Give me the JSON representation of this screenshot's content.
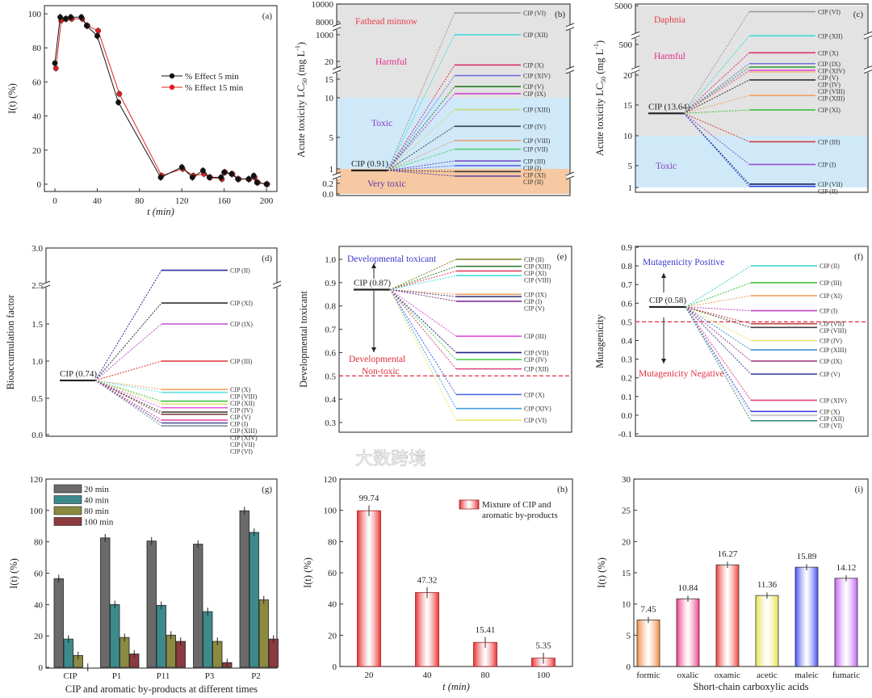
{
  "figure": {
    "watermark": "大数跨境"
  },
  "chart_data": [
    {
      "panel": "(a)",
      "type": "line",
      "xlabel": "t (min)",
      "ylabel": "I(t) (%)",
      "xlim": [
        -8,
        208
      ],
      "ylim": [
        -4,
        104
      ],
      "xticks": [
        0,
        40,
        80,
        120,
        160,
        200
      ],
      "yticks": [
        0,
        20,
        40,
        60,
        80,
        100
      ],
      "x": [
        0,
        5,
        10,
        15,
        25,
        30,
        40,
        60,
        100,
        120,
        130,
        140,
        146,
        157,
        160,
        167,
        173,
        183,
        188,
        191,
        200
      ],
      "series": [
        {
          "name": "% Effect 5 min",
          "color": "#111111",
          "values": [
            71,
            98,
            97,
            98,
            98,
            93,
            87,
            48,
            4,
            10,
            4,
            8,
            4,
            4,
            7,
            6,
            3,
            3,
            5,
            1,
            0
          ],
          "error": 2
        },
        {
          "name": "% Effect 15 min",
          "color": "#e02020",
          "values": [
            68,
            96,
            97,
            97,
            97,
            93,
            90,
            53,
            5,
            9,
            5,
            6,
            4,
            3,
            7,
            6,
            3,
            3,
            4,
            1,
            0
          ],
          "error": 2
        }
      ],
      "legend": "center-right"
    },
    {
      "panel": "(b)",
      "type": "line",
      "subtype": "slope",
      "ylabel_parts": [
        "Acute toxicity LC",
        "50",
        " (mg L",
        "-1",
        ")"
      ],
      "yticks": [
        0,
        0.2,
        1,
        5,
        10,
        15,
        20,
        1000,
        8000,
        10000
      ],
      "ytick_labels": [
        "0.0",
        "0.2",
        "1",
        "5",
        "10",
        "15",
        "20",
        "1000",
        "8000",
        "10000"
      ],
      "axis_breaks": [
        0.6,
        17.5,
        5000
      ],
      "bands": [
        {
          "from": 10,
          "to": 10000,
          "color": "#e3e3e3"
        },
        {
          "from": 1,
          "to": 10,
          "color": "#cfe9f9"
        },
        {
          "from": 0,
          "to": 1,
          "color": "#f6c9a2"
        }
      ],
      "annotations": [
        {
          "text": "Fathead minnow",
          "color": "#e8404a"
        },
        {
          "text": "Harmful",
          "color": "#e0308a"
        },
        {
          "text": "Toxic",
          "color": "#8a3cc0"
        },
        {
          "text": "Very toxic",
          "color": "#5a3ca8"
        }
      ],
      "parent": {
        "label": "CIP (0.91)",
        "value": 0.91
      },
      "products": [
        {
          "name": "CIP (VI)",
          "value": 9000,
          "color": "#9a9a9a"
        },
        {
          "name": "CIP (XII)",
          "value": 1000,
          "color": "#40d8d8"
        },
        {
          "name": "CIP (X)",
          "value": 19,
          "color": "#d83060"
        },
        {
          "name": "CIP (XIV)",
          "value": 16,
          "color": "#7070e0"
        },
        {
          "name": "CIP (V)",
          "value": 13,
          "color": "#208020"
        },
        {
          "name": "CIP (IX)",
          "value": 11.1,
          "color": "#d040d0"
        },
        {
          "name": "CIP (XIII)",
          "value": 8.5,
          "color": "#c8d870"
        },
        {
          "name": "CIP (IV)",
          "value": 6.4,
          "color": "#304050"
        },
        {
          "name": "CIP (VIII)",
          "value": 4.6,
          "color": "#e0a070"
        },
        {
          "name": "CIP (VII)",
          "value": 3.5,
          "color": "#40d060"
        },
        {
          "name": "CIP (III)",
          "value": 2.0,
          "color": "#7040c0"
        },
        {
          "name": "CIP (I)",
          "value": 1.4,
          "color": "#6060e0"
        },
        {
          "name": "CIP (XI)",
          "value": 0.85,
          "color": "#303030"
        },
        {
          "name": "CIP (II)",
          "value": 0.6,
          "color": "#6040a0"
        }
      ]
    },
    {
      "panel": "(c)",
      "type": "line",
      "subtype": "slope",
      "ylabel_parts": [
        "Acute toxicity LC",
        "50",
        " (mg L",
        "-1",
        ")"
      ],
      "yticks": [
        1,
        5,
        10,
        15,
        20,
        500,
        5000
      ],
      "ytick_labels": [
        "1",
        "5",
        "10",
        "15",
        "20",
        "500",
        "5000"
      ],
      "axis_breaks": [
        100,
        1500
      ],
      "bands": [
        {
          "from": 10,
          "to": 5000,
          "color": "#e3e3e3"
        },
        {
          "from": 1,
          "to": 10,
          "color": "#cfe9f9"
        }
      ],
      "annotations": [
        {
          "text": "Daphnia",
          "color": "#e8404a"
        },
        {
          "text": "Harmful",
          "color": "#e0308a"
        },
        {
          "text": "Toxic",
          "color": "#8a3cc0"
        }
      ],
      "parent": {
        "label": "CIP (13.64)",
        "value": 13.64
      },
      "products": [
        {
          "name": "CIP (VI)",
          "value": 4300,
          "color": "#9a9a9a"
        },
        {
          "name": "CIP (XII)",
          "value": 1500,
          "color": "#40d8d8"
        },
        {
          "name": "CIP (X)",
          "value": 370,
          "color": "#e03070"
        },
        {
          "name": "CIP (IX)",
          "value": 200,
          "color": "#7070e0"
        },
        {
          "name": "CIP (XIV)",
          "value": 145,
          "color": "#40a040"
        },
        {
          "name": "CIP (V)",
          "value": 95,
          "color": "#e050e0"
        },
        {
          "name": "CIP (IV)",
          "value": 70,
          "color": "#f0c080"
        },
        {
          "name": "CIP (VIII)",
          "value": 19.2,
          "color": "#303030"
        },
        {
          "name": "CIP (XIII)",
          "value": 16.6,
          "color": "#f0a060"
        },
        {
          "name": "CIP (XI)",
          "value": 14.2,
          "color": "#40c040"
        },
        {
          "name": "CIP (III)",
          "value": 9.0,
          "color": "#d04040"
        },
        {
          "name": "CIP (I)",
          "value": 5.2,
          "color": "#9050d0"
        },
        {
          "name": "CIP (VII)",
          "value": 1.6,
          "color": "#202060"
        },
        {
          "name": "CIP (II)",
          "value": 1.2,
          "color": "#3050e0"
        }
      ]
    },
    {
      "panel": "(d)",
      "type": "line",
      "subtype": "slope",
      "ylabel_parts": [
        "Bioaccumulation factor"
      ],
      "yticks": [
        0,
        0.5,
        1.0,
        1.5,
        2.5,
        3.0
      ],
      "ytick_labels": [
        "0.0",
        "0.5",
        "1.0",
        "1.5",
        "2.5",
        "3.0"
      ],
      "axis_breaks": [
        2.5
      ],
      "bands": [],
      "annotations": [],
      "parent": {
        "label": "CIP (0.74)",
        "value": 0.74
      },
      "products": [
        {
          "name": "CIP (II)",
          "value": 2.7,
          "color": "#3030a0"
        },
        {
          "name": "CIP (XI)",
          "value": 2.04,
          "color": "#303030"
        },
        {
          "name": "CIP (IX)",
          "value": 1.5,
          "color": "#c050d0"
        },
        {
          "name": "CIP (III)",
          "value": 1.0,
          "color": "#e03030"
        },
        {
          "name": "CIP (X)",
          "value": 0.62,
          "color": "#f0a060"
        },
        {
          "name": "CIP (VIII)",
          "value": 0.58,
          "color": "#60e0e0"
        },
        {
          "name": "CIP (XII)",
          "value": 0.46,
          "color": "#40c040"
        },
        {
          "name": "CIP (IV)",
          "value": 0.42,
          "color": "#e0e070"
        },
        {
          "name": "CIP (V)",
          "value": 0.37,
          "color": "#e060e0"
        },
        {
          "name": "CIP (I)",
          "value": 0.31,
          "color": "#404040"
        },
        {
          "name": "CIP (XIII)",
          "value": 0.28,
          "color": "#804040"
        },
        {
          "name": "CIP (XIV)",
          "value": 0.2,
          "color": "#e040a0"
        },
        {
          "name": "CIP (VII)",
          "value": 0.16,
          "color": "#5050a0"
        },
        {
          "name": "CIP (VI)",
          "value": 0.12,
          "color": "#8090a0"
        }
      ]
    },
    {
      "panel": "(e)",
      "type": "line",
      "subtype": "slope",
      "ylabel_parts": [
        "Developmental toxicant"
      ],
      "yticks": [
        0.3,
        0.4,
        0.5,
        0.6,
        0.7,
        0.8,
        0.9,
        1.0
      ],
      "ytick_labels": [
        "0.3",
        "0.4",
        "0.5",
        "0.6",
        "0.7",
        "0.8",
        "0.9",
        "1.0"
      ],
      "threshold": 0.5,
      "bands": [],
      "annotations": [
        {
          "text": "Developmental toxicant",
          "color": "#3a3ad0"
        },
        {
          "text": "Developmental",
          "color": "#e03040"
        },
        {
          "text": "Non-toxic",
          "color": "#e03040"
        }
      ],
      "parent": {
        "label": "CIP (0.87)",
        "value": 0.87
      },
      "products": [
        {
          "name": "CIP (II)",
          "value": 1.0,
          "color": "#808020"
        },
        {
          "name": "CIP (XIII)",
          "value": 0.97,
          "color": "#308030"
        },
        {
          "name": "CIP (XI)",
          "value": 0.95,
          "color": "#e04060"
        },
        {
          "name": "CIP (VIII)",
          "value": 0.93,
          "color": "#40e0e0"
        },
        {
          "name": "CIP (IX)",
          "value": 0.85,
          "color": "#f0a060"
        },
        {
          "name": "CIP (I)",
          "value": 0.84,
          "color": "#404080"
        },
        {
          "name": "CIP (V)",
          "value": 0.82,
          "color": "#803090"
        },
        {
          "name": "CIP (III)",
          "value": 0.67,
          "color": "#e050e0"
        },
        {
          "name": "CIP (VII)",
          "value": 0.6,
          "color": "#202080"
        },
        {
          "name": "CIP (IV)",
          "value": 0.57,
          "color": "#50d050"
        },
        {
          "name": "CIP (XII)",
          "value": 0.53,
          "color": "#e04080"
        },
        {
          "name": "CIP (X)",
          "value": 0.42,
          "color": "#4060e0"
        },
        {
          "name": "CIP (XIV)",
          "value": 0.36,
          "color": "#40a0e0"
        },
        {
          "name": "CIP (VI)",
          "value": 0.31,
          "color": "#e8e060"
        }
      ]
    },
    {
      "panel": "(f)",
      "type": "line",
      "subtype": "slope",
      "ylabel_parts": [
        "Mutagenicity"
      ],
      "yticks": [
        -0.1,
        0,
        0.1,
        0.2,
        0.3,
        0.4,
        0.5,
        0.6,
        0.7,
        0.8,
        0.9
      ],
      "ytick_labels": [
        "-0.1",
        "0.0",
        "0.1",
        "0.2",
        "0.3",
        "0.4",
        "0.5",
        "0.6",
        "0.7",
        "0.8",
        "0.9"
      ],
      "threshold": 0.5,
      "bands": [],
      "annotations": [
        {
          "text": "Mutagenicity Positive",
          "color": "#3a3ad0"
        },
        {
          "text": "Mutagenicity Negative",
          "color": "#e03040"
        }
      ],
      "parent": {
        "label": "CIP (0.58)",
        "value": 0.58
      },
      "products": [
        {
          "name": "CIP (II)",
          "value": 0.8,
          "color": "#40d0d0"
        },
        {
          "name": "CIP (III)",
          "value": 0.71,
          "color": "#40c040"
        },
        {
          "name": "CIP (XI)",
          "value": 0.64,
          "color": "#f0a060"
        },
        {
          "name": "CIP (I)",
          "value": 0.56,
          "color": "#c040c0"
        },
        {
          "name": "CIP (VII)",
          "value": 0.49,
          "color": "#c04040"
        },
        {
          "name": "CIP (VIII)",
          "value": 0.47,
          "color": "#404040"
        },
        {
          "name": "CIP (IV)",
          "value": 0.4,
          "color": "#e8e060"
        },
        {
          "name": "CIP (XIII)",
          "value": 0.35,
          "color": "#4090d0"
        },
        {
          "name": "CIP (IX)",
          "value": 0.29,
          "color": "#a04080"
        },
        {
          "name": "CIP (V)",
          "value": 0.22,
          "color": "#4040a0"
        },
        {
          "name": "CIP (XIV)",
          "value": 0.08,
          "color": "#e04080"
        },
        {
          "name": "CIP (X)",
          "value": 0.02,
          "color": "#4040e0"
        },
        {
          "name": "CIP (XII)",
          "value": 0.0,
          "color": "#c0c0c0"
        },
        {
          "name": "CIP (VI)",
          "value": -0.03,
          "color": "#309080"
        }
      ]
    },
    {
      "panel": "(g)",
      "type": "bar",
      "xlabel": "CIP and aromatic by-products at different times",
      "ylabel": "I(t) (%)",
      "ylim": [
        0,
        120
      ],
      "yticks": [
        0,
        20,
        40,
        60,
        80,
        100,
        120
      ],
      "categories": [
        "CIP",
        "P1",
        "P11",
        "P3",
        "P2"
      ],
      "series": [
        {
          "name": "20 min",
          "color": "#6a6a6a",
          "values": [
            56.5,
            82.5,
            80.5,
            78.5,
            99.8
          ],
          "error": 2.5
        },
        {
          "name": "40 min",
          "color": "#3d8a8c",
          "values": [
            18,
            40,
            39.5,
            35.5,
            86
          ],
          "error": 2.5
        },
        {
          "name": "80 min",
          "color": "#8c8a40",
          "values": [
            7.5,
            19,
            20.5,
            16.5,
            43
          ],
          "error": 2.5
        },
        {
          "name": "100 min",
          "color": "#8b3a3e",
          "values": [
            0,
            8.5,
            16.5,
            3,
            18
          ],
          "error": 2.5
        }
      ],
      "legend": "top-left"
    },
    {
      "panel": "(h)",
      "type": "bar",
      "xlabel": "t (min)",
      "ylabel": "I(t) (%)",
      "ylim": [
        0,
        120
      ],
      "yticks": [
        0,
        20,
        40,
        60,
        80,
        100,
        120
      ],
      "categories": [
        "20",
        "40",
        "80",
        "100"
      ],
      "series": [
        {
          "name": [
            "Mixture of CIP and",
            "aromatic by-products"
          ],
          "color": "#e83030",
          "values": [
            99.74,
            47.32,
            15.41,
            5.35
          ],
          "labels": [
            "99.74",
            "47.32",
            "15.41",
            "5.35"
          ],
          "error": 3.5
        }
      ],
      "legend": "top-right"
    },
    {
      "panel": "(i)",
      "type": "bar",
      "xlabel": "Short-chain carboxylic acids",
      "ylabel": "I(t) (%)",
      "ylim": [
        0,
        30
      ],
      "yticks": [
        0,
        5,
        10,
        15,
        20,
        25,
        30
      ],
      "categories": [
        "formic",
        "oxalic",
        "oxamic",
        "acetic",
        "maleic",
        "fumaric"
      ],
      "values": [
        7.45,
        10.84,
        16.27,
        11.36,
        15.89,
        14.12
      ],
      "labels": [
        "7.45",
        "10.84",
        "16.27",
        "11.36",
        "15.89",
        "14.12"
      ],
      "colors": [
        "#f08a40",
        "#f03c8c",
        "#f04040",
        "#e8e050",
        "#4050f0",
        "#c060f0"
      ],
      "label_colors": [
        "#f0a060",
        "#e0307a",
        "#e03040",
        "#b8b840",
        "#3030d0",
        "#b040d0"
      ],
      "error": 0.5
    }
  ]
}
